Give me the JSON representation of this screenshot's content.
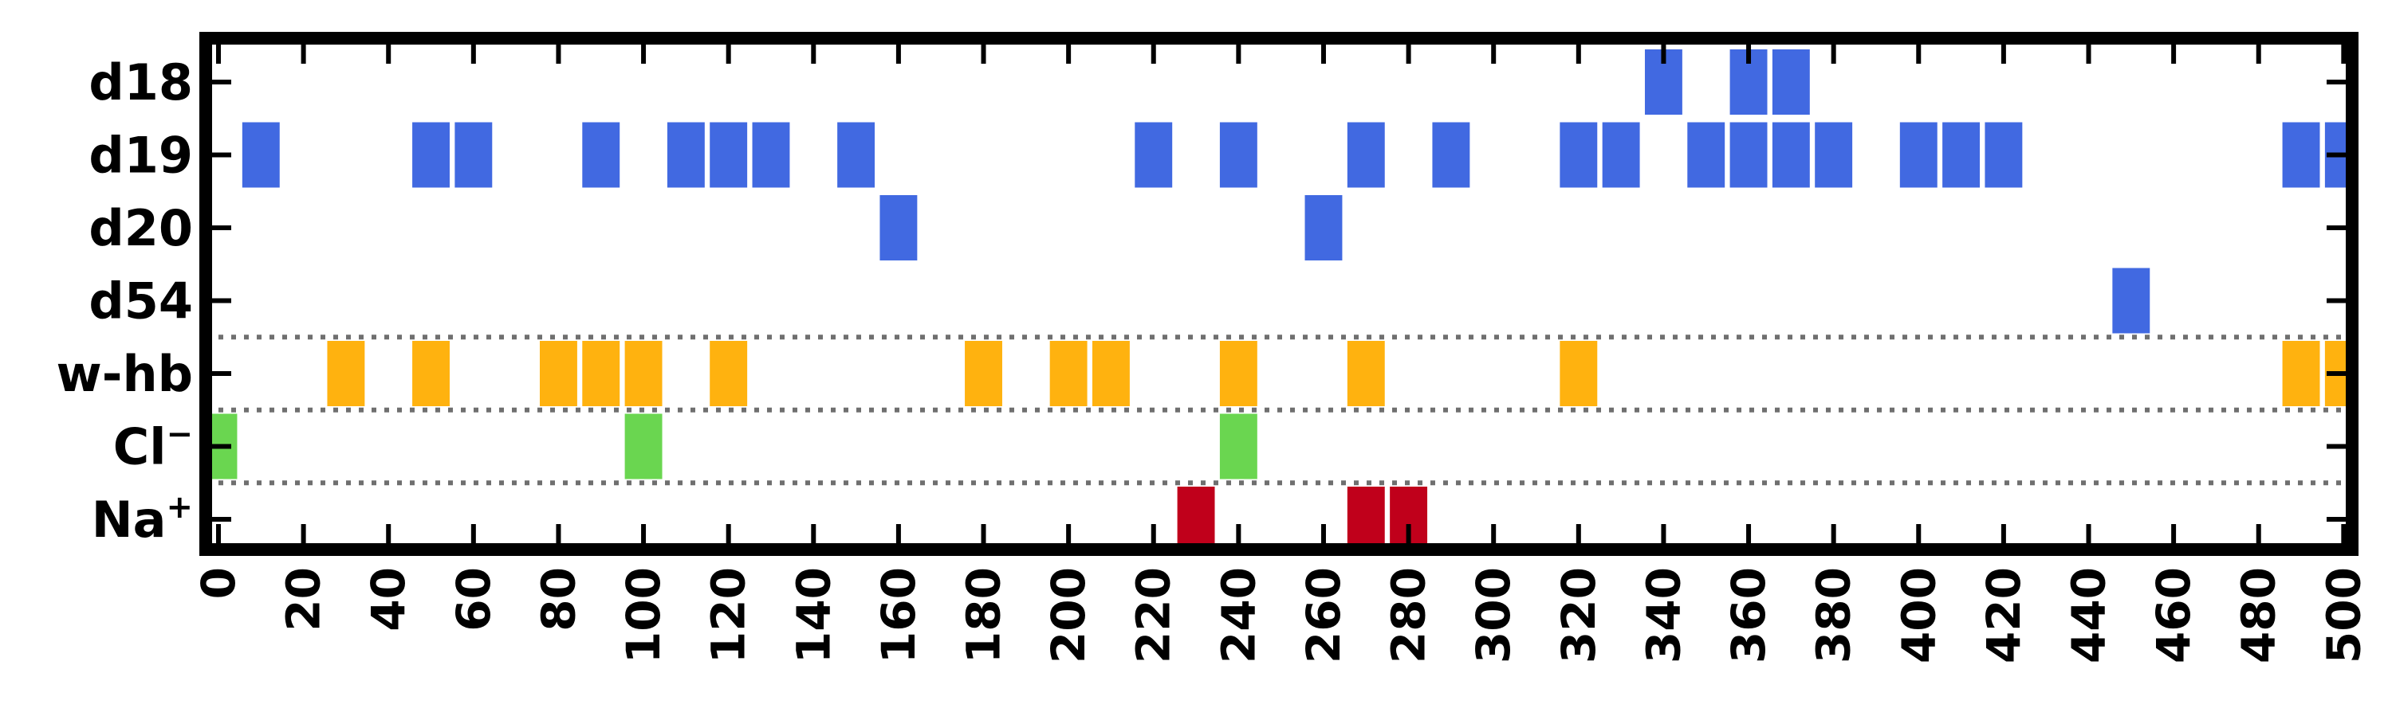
{
  "chart_data": {
    "type": "heatmap",
    "title": "",
    "xlabel": "",
    "ylabel": "",
    "xlim": [
      -3,
      502
    ],
    "x_ticks": [
      0,
      20,
      40,
      60,
      80,
      100,
      120,
      140,
      160,
      180,
      200,
      220,
      240,
      260,
      280,
      300,
      320,
      340,
      360,
      380,
      400,
      420,
      440,
      460,
      480,
      500
    ],
    "x_tick_labels": [
      "0",
      "20",
      "40",
      "60",
      "80",
      "100",
      "120",
      "140",
      "160",
      "180",
      "200",
      "220",
      "240",
      "260",
      "280",
      "300",
      "320",
      "340",
      "360",
      "380",
      "400",
      "420",
      "440",
      "460",
      "480",
      "500"
    ],
    "group_separators_after_row": [
      3,
      4,
      5
    ],
    "grid": false,
    "legend": "none",
    "rows": [
      {
        "key": "d18",
        "label": "d18",
        "sup": "",
        "color": "#4169e1",
        "x": [
          340,
          360,
          370
        ]
      },
      {
        "key": "d19",
        "label": "d19",
        "sup": "",
        "color": "#4169e1",
        "x": [
          10,
          50,
          60,
          90,
          110,
          120,
          130,
          150,
          220,
          240,
          270,
          290,
          320,
          330,
          350,
          360,
          370,
          380,
          400,
          410,
          420,
          490,
          500
        ]
      },
      {
        "key": "d20",
        "label": "d20",
        "sup": "",
        "color": "#4169e1",
        "x": [
          160,
          260
        ]
      },
      {
        "key": "d54",
        "label": "d54",
        "sup": "",
        "color": "#4169e1",
        "x": [
          450
        ]
      },
      {
        "key": "w-hb",
        "label": "w-hb",
        "sup": "",
        "color": "#ffb20f",
        "x": [
          30,
          50,
          80,
          90,
          100,
          120,
          180,
          200,
          210,
          240,
          270,
          320,
          490,
          500
        ]
      },
      {
        "key": "cl",
        "label": "Cl",
        "sup": "−",
        "color": "#6ad650",
        "x": [
          0,
          100,
          240
        ]
      },
      {
        "key": "na",
        "label": "Na",
        "sup": "+",
        "color": "#c0001b",
        "x": [
          230,
          270,
          280
        ]
      }
    ]
  }
}
